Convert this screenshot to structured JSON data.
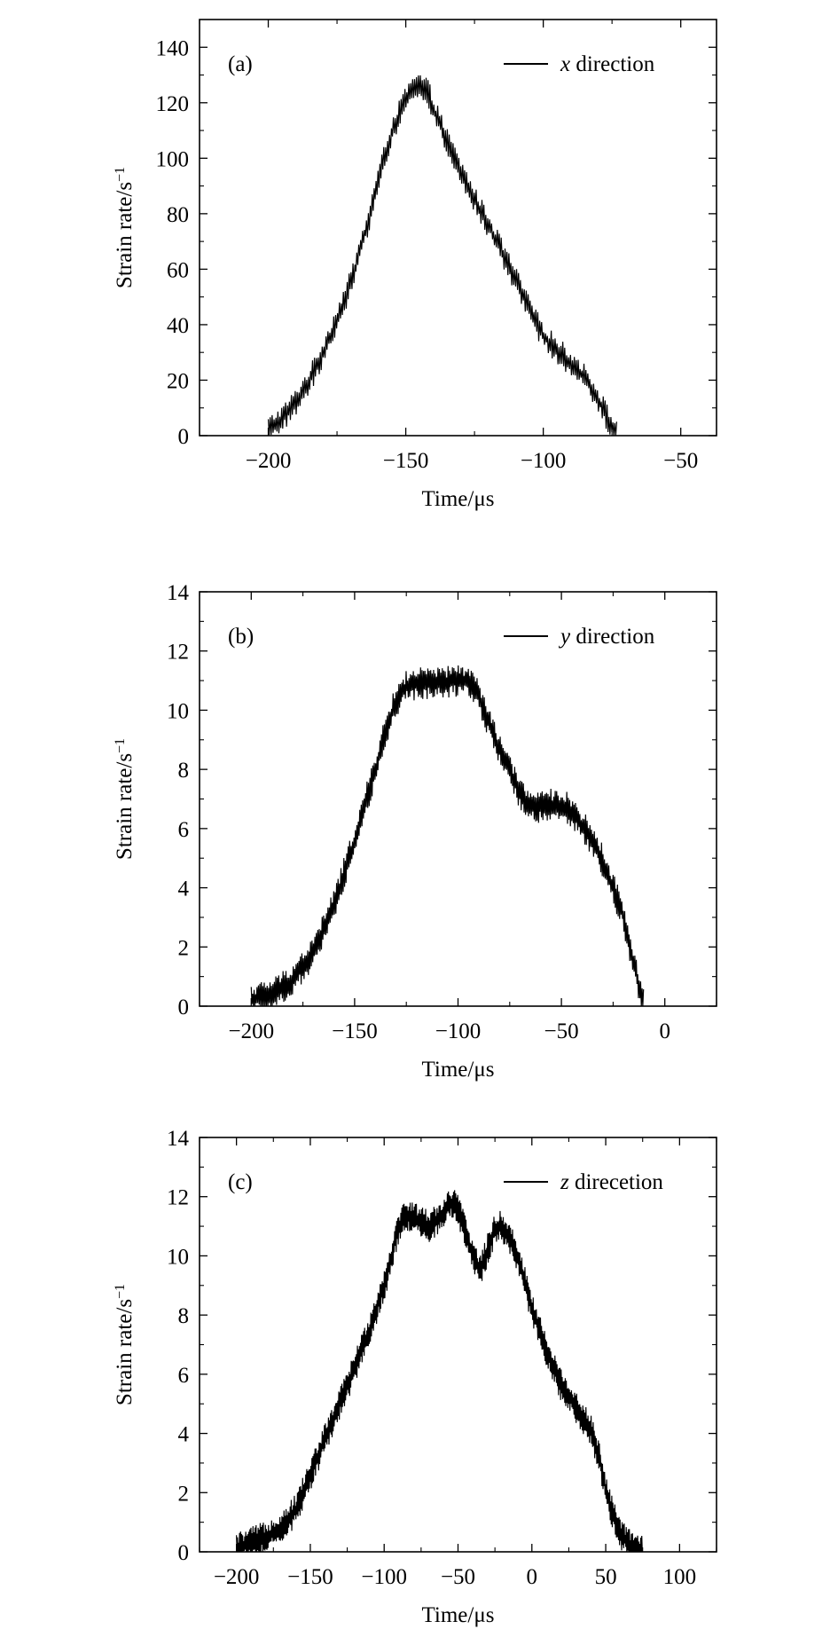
{
  "chart_data": [
    {
      "type": "line",
      "panel_label": "(a)",
      "xlabel": "Time/μs",
      "ylabel": "Strain rate/s",
      "ylabel_sup": "−1",
      "xlim": [
        -225,
        -37
      ],
      "ylim": [
        0,
        150
      ],
      "xticks": [
        -200,
        -150,
        -100,
        -50
      ],
      "xtick_labels": [
        "−200",
        "−150",
        "−100",
        "−50"
      ],
      "yticks": [
        0,
        20,
        40,
        60,
        80,
        100,
        120,
        140
      ],
      "ytick_labels": [
        "0",
        "20",
        "40",
        "60",
        "80",
        "100",
        "120",
        "140"
      ],
      "legend": {
        "position": "top-right",
        "var": "x",
        "text": " direction"
      },
      "series": [
        {
          "noise": 5,
          "x": [
            -200,
            -195,
            -190,
            -185,
            -180,
            -175,
            -170,
            -165,
            -160,
            -155,
            -150,
            -147,
            -145,
            -142,
            -140,
            -135,
            -130,
            -125,
            -120,
            -115,
            -110,
            -105,
            -100,
            -95,
            -90,
            -85,
            -80,
            -75,
            -73
          ],
          "y": [
            2,
            6,
            12,
            20,
            30,
            42,
            55,
            72,
            92,
            110,
            121,
            125,
            126,
            124,
            118,
            106,
            95,
            85,
            76,
            66,
            56,
            45,
            36,
            31,
            26,
            21,
            13,
            3,
            0
          ]
        }
      ]
    },
    {
      "type": "line",
      "panel_label": "(b)",
      "xlabel": "Time/μs",
      "ylabel": "Strain rate/s",
      "ylabel_sup": "−1",
      "xlim": [
        -225,
        25
      ],
      "ylim": [
        0,
        14
      ],
      "xticks": [
        -200,
        -150,
        -100,
        -50,
        0
      ],
      "xtick_labels": [
        "−200",
        "−150",
        "−100",
        "−50",
        "0"
      ],
      "yticks": [
        0,
        2,
        4,
        6,
        8,
        10,
        12,
        14
      ],
      "ytick_labels": [
        "0",
        "2",
        "4",
        "6",
        "8",
        "10",
        "12",
        "14"
      ],
      "legend": {
        "position": "top-right",
        "var": "y",
        "text": " direction"
      },
      "series": [
        {
          "noise": 0.55,
          "x": [
            -200,
            -190,
            -180,
            -170,
            -160,
            -150,
            -145,
            -140,
            -135,
            -130,
            -125,
            -120,
            -110,
            -100,
            -95,
            -90,
            -85,
            -80,
            -75,
            -70,
            -65,
            -60,
            -55,
            -50,
            -45,
            -40,
            -35,
            -30,
            -25,
            -20,
            -15,
            -12,
            -10
          ],
          "y": [
            0.2,
            0.4,
            0.9,
            1.8,
            3.4,
            5.6,
            6.8,
            8.0,
            9.3,
            10.3,
            10.8,
            10.9,
            10.9,
            11.0,
            11.0,
            10.5,
            9.5,
            8.7,
            7.9,
            7.2,
            6.8,
            6.7,
            6.8,
            6.8,
            6.6,
            6.1,
            5.6,
            4.9,
            4.0,
            3.0,
            1.4,
            0.5,
            0
          ]
        }
      ]
    },
    {
      "type": "line",
      "panel_label": "(c)",
      "xlabel": "Time/μs",
      "ylabel": "Strain rate/s",
      "ylabel_sup": "−1",
      "xlim": [
        -225,
        125
      ],
      "ylim": [
        0,
        14
      ],
      "xticks": [
        -200,
        -150,
        -100,
        -50,
        0,
        50,
        100
      ],
      "xtick_labels": [
        "−200",
        "−150",
        "−100",
        "−50",
        "0",
        "50",
        "100"
      ],
      "yticks": [
        0,
        2,
        4,
        6,
        8,
        10,
        12,
        14
      ],
      "ytick_labels": [
        "0",
        "2",
        "4",
        "6",
        "8",
        "10",
        "12",
        "14"
      ],
      "legend": {
        "position": "top-right",
        "var": "z",
        "text": " direcetion"
      },
      "series": [
        {
          "noise": 0.55,
          "x": [
            -200,
            -190,
            -180,
            -170,
            -160,
            -150,
            -140,
            -130,
            -120,
            -110,
            -100,
            -95,
            -90,
            -85,
            -80,
            -70,
            -60,
            -55,
            -50,
            -45,
            -40,
            -35,
            -30,
            -25,
            -20,
            -15,
            -10,
            -5,
            0,
            10,
            20,
            30,
            40,
            45,
            50,
            55,
            60,
            65,
            70,
            75
          ],
          "y": [
            0.1,
            0.3,
            0.5,
            0.8,
            1.4,
            2.6,
            3.8,
            5.0,
            6.2,
            7.5,
            9.0,
            10.0,
            11.0,
            11.4,
            11.3,
            11.0,
            11.4,
            11.8,
            11.6,
            10.8,
            10.0,
            9.5,
            10.2,
            10.9,
            11.0,
            10.6,
            10.0,
            9.2,
            8.2,
            6.8,
            5.6,
            4.9,
            4.1,
            3.3,
            2.1,
            1.2,
            0.6,
            0.3,
            0.1,
            0
          ]
        }
      ]
    }
  ]
}
